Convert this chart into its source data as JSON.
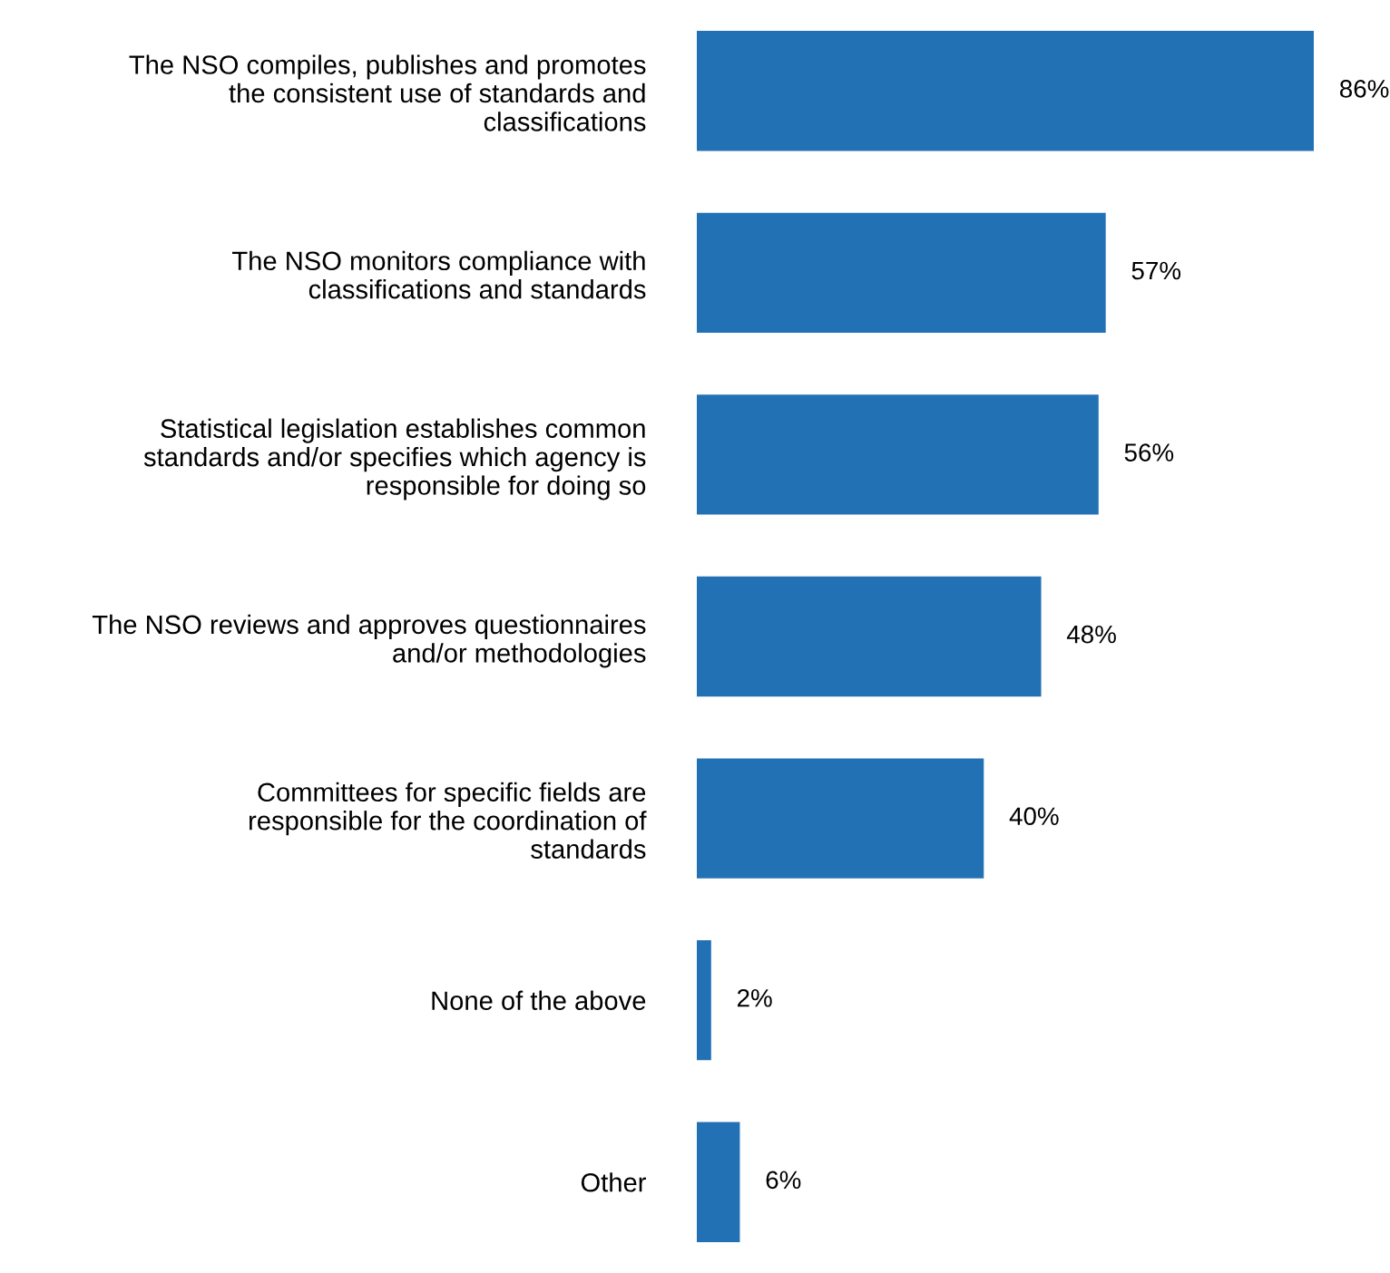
{
  "chart_data": {
    "type": "bar",
    "orientation": "horizontal",
    "categories": [
      "The NSO compiles, publishes and promotes\nthe consistent use of standards and\nclassifications",
      "The NSO monitors compliance with\nclassifications and standards",
      "Statistical legislation establishes common\nstandards and/or specifies which agency is\nresponsible for doing so",
      "The NSO reviews and approves questionnaires\nand/or methodologies",
      "Committees for specific fields are\nresponsible for the coordination of\nstandards",
      "None of the above",
      "Other"
    ],
    "values": [
      86,
      57,
      56,
      48,
      40,
      2,
      6
    ],
    "value_labels": [
      "86%",
      "57%",
      "56%",
      "48%",
      "40%",
      "2%",
      "6%"
    ],
    "color": "#2371b5",
    "grid": false,
    "legend": false,
    "tick_labels": "y"
  }
}
